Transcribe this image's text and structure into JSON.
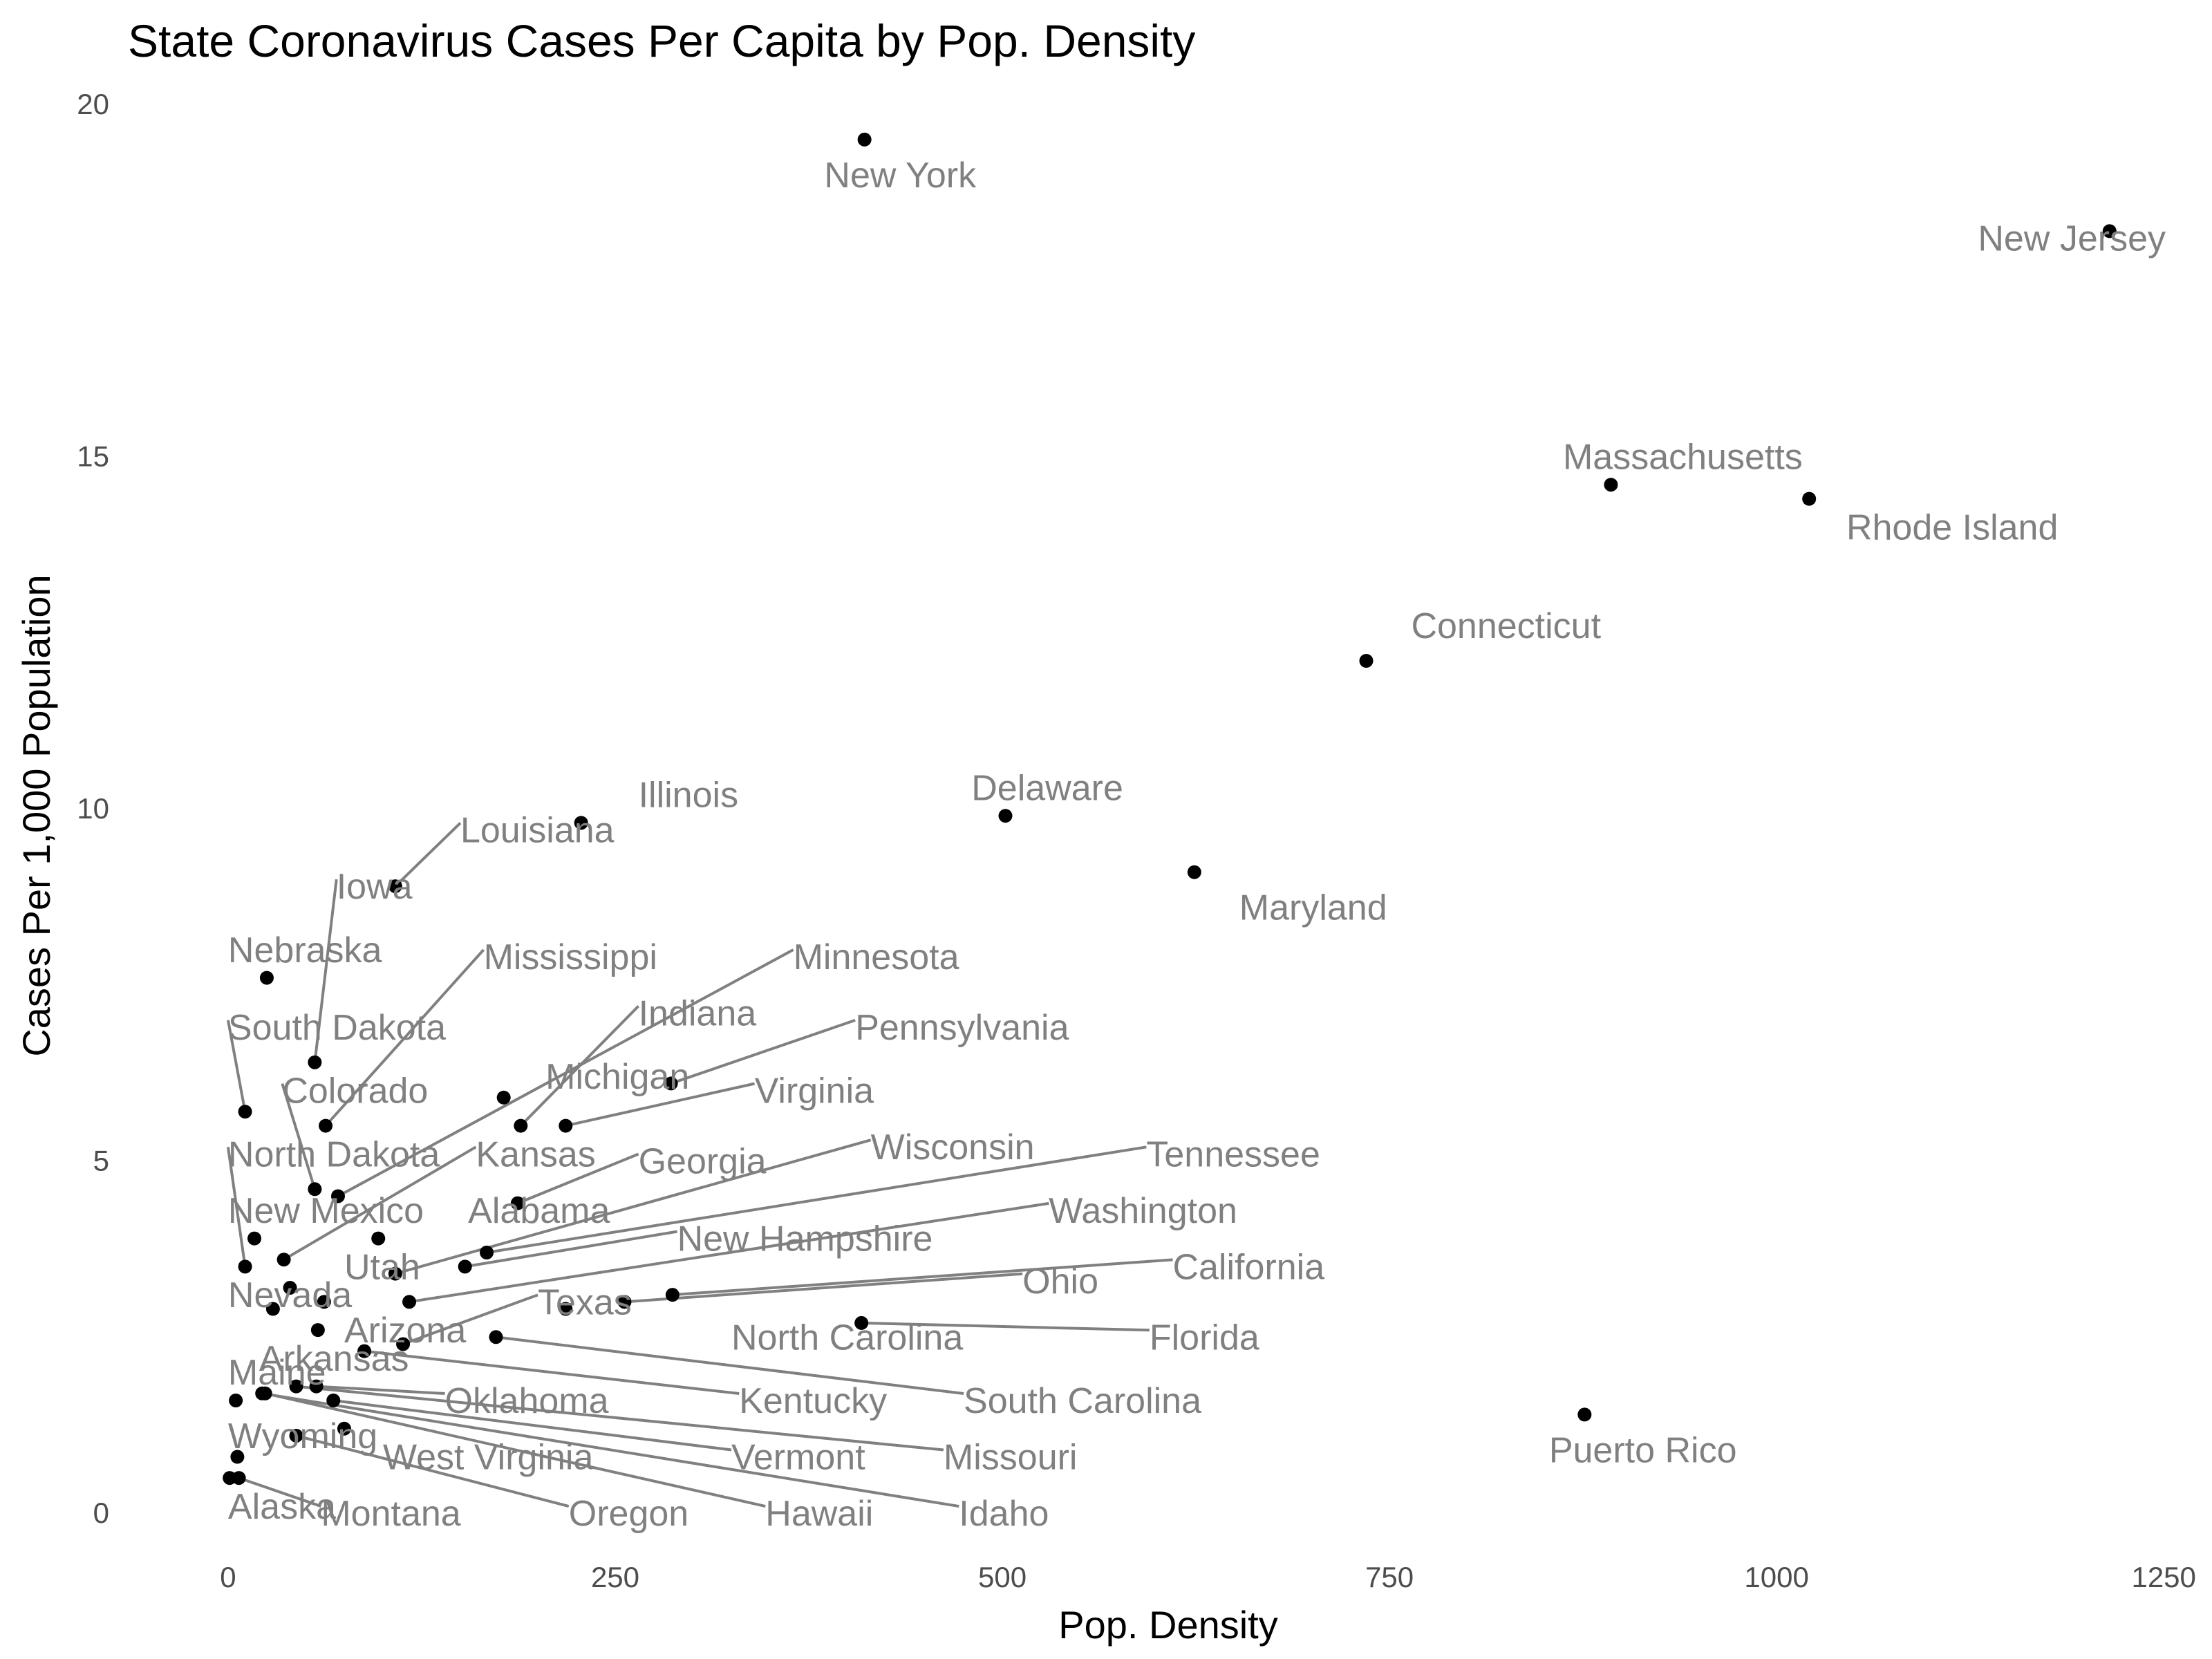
{
  "chart_data": {
    "type": "scatter",
    "title": "State Coronavirus Cases Per Capita by Pop. Density",
    "xlabel": "Pop. Density",
    "ylabel": "Cases Per 1,000 Population",
    "xlim": [
      -58,
      1270
    ],
    "ylim": [
      -0.5,
      20.5
    ],
    "xticks": [
      0,
      250,
      500,
      750,
      1000,
      1250
    ],
    "yticks": [
      0,
      5,
      10,
      15,
      20
    ],
    "grid": false,
    "legend": "none",
    "point_color": "#000000",
    "label_color": "#808080",
    "points": [
      {
        "name": "New York",
        "x": 411,
        "y": 19.5,
        "lx": 385,
        "ly": 19.0
      },
      {
        "name": "New Jersey",
        "x": 1215,
        "y": 18.2,
        "lx": 1130,
        "ly": 18.1
      },
      {
        "name": "Massachusetts",
        "x": 893,
        "y": 14.6,
        "lx": 862,
        "ly": 15.0
      },
      {
        "name": "Rhode Island",
        "x": 1021,
        "y": 14.4,
        "lx": 1045,
        "ly": 14.0
      },
      {
        "name": "Connecticut",
        "x": 735,
        "y": 12.1,
        "lx": 764,
        "ly": 12.6
      },
      {
        "name": "Illinois",
        "x": 228,
        "y": 9.8,
        "lx": 265,
        "ly": 10.2
      },
      {
        "name": "Delaware",
        "x": 502,
        "y": 9.9,
        "lx": 480,
        "ly": 10.3
      },
      {
        "name": "Louisiana",
        "x": 108,
        "y": 8.9,
        "lx": 150,
        "ly": 9.7,
        "leader": true
      },
      {
        "name": "Maryland",
        "x": 624,
        "y": 9.1,
        "lx": 653,
        "ly": 8.6
      },
      {
        "name": "Iowa",
        "x": 56,
        "y": 6.4,
        "lx": 70,
        "ly": 8.9,
        "leader": true
      },
      {
        "name": "Nebraska",
        "x": 25,
        "y": 7.6,
        "lx": 0,
        "ly": 8.0
      },
      {
        "name": "Mississippi",
        "x": 63,
        "y": 5.5,
        "lx": 165,
        "ly": 7.9,
        "leader": true
      },
      {
        "name": "Minnesota",
        "x": 71,
        "y": 4.5,
        "lx": 365,
        "ly": 7.9,
        "leader": true
      },
      {
        "name": "Indiana",
        "x": 189,
        "y": 5.5,
        "lx": 265,
        "ly": 7.1,
        "leader": true
      },
      {
        "name": "South Dakota",
        "x": 11,
        "y": 5.7,
        "lx": 0,
        "ly": 6.9,
        "leader": true
      },
      {
        "name": "Pennsylvania",
        "x": 286,
        "y": 6.1,
        "lx": 405,
        "ly": 6.9,
        "leader": true
      },
      {
        "name": "Michigan",
        "x": 178,
        "y": 5.9,
        "lx": 205,
        "ly": 6.2
      },
      {
        "name": "Virginia",
        "x": 218,
        "y": 5.5,
        "lx": 340,
        "ly": 6.0,
        "leader": true
      },
      {
        "name": "Colorado",
        "x": 56,
        "y": 4.6,
        "lx": 35,
        "ly": 6.0,
        "leader": true
      },
      {
        "name": "Wisconsin",
        "x": 108,
        "y": 3.4,
        "lx": 415,
        "ly": 5.2,
        "leader": true
      },
      {
        "name": "North Dakota",
        "x": 11,
        "y": 3.5,
        "lx": 0,
        "ly": 5.1,
        "leader": true
      },
      {
        "name": "Kansas",
        "x": 36,
        "y": 3.6,
        "lx": 160,
        "ly": 5.1,
        "leader": true
      },
      {
        "name": "Tennessee",
        "x": 167,
        "y": 3.7,
        "lx": 593,
        "ly": 5.1,
        "leader": true
      },
      {
        "name": "Georgia",
        "x": 187,
        "y": 4.4,
        "lx": 265,
        "ly": 5.0,
        "leader": true
      },
      {
        "name": "New Mexico",
        "x": 17,
        "y": 3.9,
        "lx": 0,
        "ly": 4.3
      },
      {
        "name": "Alabama",
        "x": 97,
        "y": 3.9,
        "lx": 155,
        "ly": 4.3
      },
      {
        "name": "Washington",
        "x": 117,
        "y": 3.0,
        "lx": 530,
        "ly": 4.3,
        "leader": true
      },
      {
        "name": "New Hampshire",
        "x": 153,
        "y": 3.5,
        "lx": 290,
        "ly": 3.9,
        "leader": true
      },
      {
        "name": "Utah",
        "x": 40,
        "y": 3.2,
        "lx": 75,
        "ly": 3.5
      },
      {
        "name": "California",
        "x": 287,
        "y": 3.1,
        "lx": 610,
        "ly": 3.5,
        "leader": true
      },
      {
        "name": "Ohio",
        "x": 256,
        "y": 3.0,
        "lx": 513,
        "ly": 3.3,
        "leader": true
      },
      {
        "name": "Nevada",
        "x": 29,
        "y": 2.9,
        "lx": 0,
        "ly": 3.1
      },
      {
        "name": "Texas",
        "x": 113,
        "y": 2.4,
        "lx": 200,
        "ly": 3.0,
        "leader": true
      },
      {
        "name": "North Carolina",
        "x": 218,
        "y": 2.9,
        "lx": 325,
        "ly": 2.5
      },
      {
        "name": "Arizona",
        "x": 62,
        "y": 3.0,
        "lx": 75,
        "ly": 2.6
      },
      {
        "name": "Florida",
        "x": 409,
        "y": 2.7,
        "lx": 595,
        "ly": 2.5,
        "leader": true
      },
      {
        "name": "Arkansas",
        "x": 58,
        "y": 2.6,
        "lx": 20,
        "ly": 2.2
      },
      {
        "name": "Kentucky",
        "x": 88,
        "y": 2.3,
        "lx": 330,
        "ly": 1.6,
        "leader": true
      },
      {
        "name": "South Carolina",
        "x": 173,
        "y": 2.5,
        "lx": 475,
        "ly": 1.6,
        "leader": true
      },
      {
        "name": "Maine",
        "x": 5,
        "y": 1.6,
        "lx": 0,
        "ly": 2.0
      },
      {
        "name": "Oklahoma",
        "x": 57,
        "y": 1.8,
        "lx": 140,
        "ly": 1.6,
        "leader": true
      },
      {
        "name": "Missouri",
        "x": 44,
        "y": 1.8,
        "lx": 462,
        "ly": 0.8,
        "leader": true
      },
      {
        "name": "Wyoming",
        "x": 6,
        "y": 0.8,
        "lx": 0,
        "ly": 1.1
      },
      {
        "name": "West Virginia",
        "x": 75,
        "y": 1.2,
        "lx": 100,
        "ly": 0.8
      },
      {
        "name": "Vermont",
        "x": 68,
        "y": 1.6,
        "lx": 325,
        "ly": 0.8,
        "leader": true
      },
      {
        "name": "Alaska",
        "x": 1,
        "y": 0.5,
        "lx": 0,
        "ly": 0.1
      },
      {
        "name": "Montana",
        "x": 7,
        "y": 0.5,
        "lx": 60,
        "ly": 0.0,
        "leader": true
      },
      {
        "name": "Oregon",
        "x": 44,
        "y": 1.1,
        "lx": 220,
        "ly": 0.0,
        "leader": true
      },
      {
        "name": "Hawaii",
        "x": 24,
        "y": 1.7,
        "lx": 347,
        "ly": 0.0,
        "leader": true
      },
      {
        "name": "Idaho",
        "x": 22,
        "y": 1.7,
        "lx": 472,
        "ly": 0.0,
        "leader": true
      },
      {
        "name": "Puerto Rico",
        "x": 876,
        "y": 1.4,
        "lx": 853,
        "ly": 0.9
      }
    ]
  }
}
